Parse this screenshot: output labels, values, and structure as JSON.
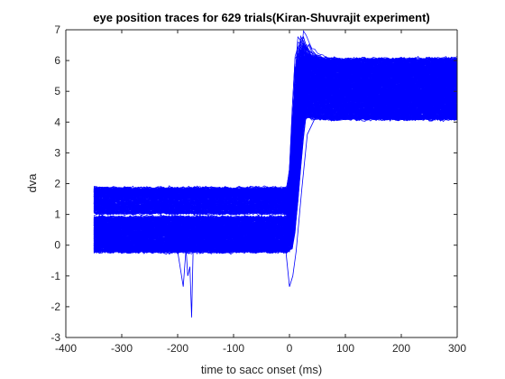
{
  "chart_data": {
    "type": "line",
    "title": "eye position traces for 629 trials(Kiran-Shuvrajit experiment)",
    "xlabel": "time to sacc onset (ms)",
    "ylabel": "dva",
    "xlim": [
      -400,
      300
    ],
    "ylim": [
      -3,
      7
    ],
    "xticks": [
      -400,
      -300,
      -200,
      -100,
      0,
      100,
      200,
      300
    ],
    "yticks": [
      -3,
      -2,
      -1,
      0,
      1,
      2,
      3,
      4,
      5,
      6,
      7
    ],
    "x_range_of_traces": [
      -350,
      300
    ],
    "n_traces": 629,
    "line_color": "#0000ff",
    "grid": false,
    "legend": "none",
    "summary": {
      "pre_saccade_levels": [
        {
          "cluster": "upper",
          "y_min": 1.0,
          "y_max": 1.9
        },
        {
          "cluster": "lower",
          "y_min": -0.25,
          "y_max": 0.95
        }
      ],
      "saccade_onset_x": 0,
      "saccade_end_x": 25,
      "peak_overshoot": {
        "x": 35,
        "y": 6.45
      },
      "post_saccade_band": {
        "y_min": 4.05,
        "y_max": 6.1
      },
      "notable_excursions": [
        {
          "x": -185,
          "y": -1.35
        },
        {
          "x": -175,
          "y": -2.35
        },
        {
          "x": 0,
          "y": -1.35
        }
      ]
    }
  }
}
